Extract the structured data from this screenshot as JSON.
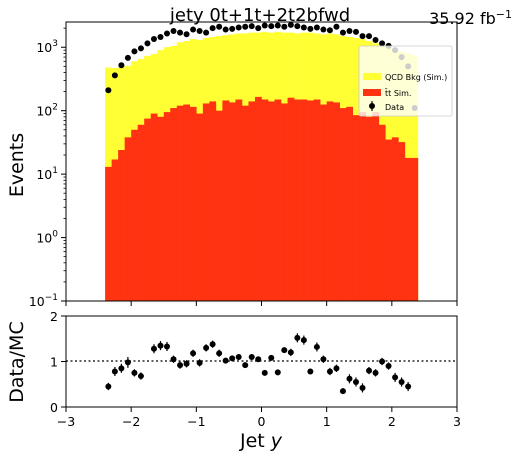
{
  "chart_data": {
    "type": "bar",
    "title": "jety  0t+1t+2t2bfwd",
    "lumi_label": "35.92 fb",
    "lumi_exponent": "−1",
    "xlabel": "Jet y",
    "xlabel_main": "Jet ",
    "xlabel_var": "y",
    "ylabel_top": "Events",
    "ylabel_bottom": "Data/MC",
    "xlim": [
      -3,
      3
    ],
    "ylim_top": [
      0.1,
      2500
    ],
    "yscale_top": "log",
    "ylim_bottom": [
      0,
      2
    ],
    "x_ticks": [
      "−3",
      "−2",
      "−1",
      "0",
      "1",
      "2",
      "3"
    ],
    "y_ticks_top": [
      {
        "base": "10",
        "exp": "−1"
      },
      {
        "base": "10",
        "exp": "0"
      },
      {
        "base": "10",
        "exp": "1"
      },
      {
        "base": "10",
        "exp": "2"
      },
      {
        "base": "10",
        "exp": "3"
      }
    ],
    "y_ticks_bottom": [
      "0",
      "1",
      "2"
    ],
    "reference_line": 1,
    "legend_placement": "top-right",
    "colors": {
      "qcd": "#ffff33",
      "ttbar": "#ff3311",
      "data": "#000000"
    },
    "bin_edges_start": -2.4,
    "bin_width": 0.1,
    "series": [
      {
        "name": "QCD Bkg (Sim.)",
        "stacked_total": [
          480,
          470,
          480,
          510,
          600,
          650,
          730,
          780,
          900,
          1000,
          1050,
          1200,
          1250,
          1350,
          1300,
          1400,
          1450,
          1500,
          1550,
          1600,
          1650,
          1650,
          1700,
          1700,
          1750,
          1700,
          1750,
          1700,
          1700,
          1650,
          1700,
          1700,
          1650,
          1600,
          1650,
          1600,
          1500,
          1450,
          1400,
          1350,
          1250,
          1150,
          1050,
          1000,
          900,
          850,
          800,
          750
        ]
      },
      {
        "name": "t̄t Sim.",
        "values": [
          13,
          17,
          24,
          38,
          50,
          60,
          75,
          90,
          80,
          95,
          110,
          120,
          125,
          115,
          90,
          130,
          140,
          100,
          145,
          135,
          150,
          120,
          140,
          165,
          150,
          140,
          150,
          130,
          160,
          150,
          150,
          145,
          150,
          125,
          140,
          135,
          110,
          115,
          85,
          95,
          80,
          95,
          60,
          35,
          38,
          32,
          18,
          18
        ]
      },
      {
        "name": "Data",
        "x": [
          -2.35,
          -2.25,
          -2.15,
          -2.05,
          -1.95,
          -1.85,
          -1.75,
          -1.65,
          -1.55,
          -1.45,
          -1.35,
          -1.25,
          -1.15,
          -1.05,
          -0.95,
          -0.85,
          -0.75,
          -0.65,
          -0.55,
          -0.45,
          -0.35,
          -0.25,
          -0.15,
          -0.05,
          0.05,
          0.15,
          0.25,
          0.35,
          0.45,
          0.55,
          0.65,
          0.75,
          0.85,
          0.95,
          1.05,
          1.15,
          1.25,
          1.35,
          1.45,
          1.55,
          1.65,
          1.75,
          1.85,
          1.95,
          2.05,
          2.15,
          2.25,
          2.35
        ],
        "values": [
          210,
          360,
          520,
          680,
          860,
          960,
          1150,
          1350,
          1450,
          1650,
          1800,
          1700,
          1600,
          1900,
          1800,
          1700,
          2000,
          2100,
          1900,
          1950,
          2050,
          2100,
          2150,
          2000,
          2200,
          2150,
          2200,
          2100,
          2250,
          2150,
          2050,
          1950,
          2050,
          1900,
          1850,
          2100,
          1700,
          1800,
          1750,
          1500,
          1500,
          1300,
          1150,
          1050,
          900,
          700,
          500,
          110
        ],
        "ratio_x": [
          -2.35,
          -2.25,
          -2.15,
          -2.05,
          -1.95,
          -1.85,
          -1.65,
          -1.55,
          -1.45,
          -1.35,
          -1.25,
          -1.15,
          -1.05,
          -0.95,
          -0.85,
          -0.75,
          -0.65,
          -0.55,
          -0.45,
          -0.35,
          -0.25,
          -0.15,
          -0.05,
          0.05,
          0.15,
          0.25,
          0.35,
          0.45,
          0.55,
          0.65,
          0.75,
          0.85,
          0.95,
          1.05,
          1.15,
          1.25,
          1.35,
          1.45,
          1.55,
          1.65,
          1.75,
          1.85,
          1.95,
          2.05,
          2.15,
          2.25
        ],
        "ratio": [
          0.45,
          0.78,
          0.85,
          0.98,
          0.75,
          0.68,
          1.28,
          1.35,
          1.33,
          1.05,
          0.92,
          0.95,
          1.18,
          0.97,
          1.3,
          1.38,
          1.18,
          1.02,
          1.07,
          1.1,
          0.92,
          1.1,
          1.05,
          0.75,
          1.08,
          0.76,
          1.25,
          1.2,
          1.52,
          1.47,
          0.78,
          1.32,
          1.05,
          0.78,
          0.85,
          0.35,
          0.62,
          0.55,
          0.42,
          0.8,
          0.75,
          1.0,
          0.9,
          0.65,
          0.55,
          0.45
        ],
        "ratio_err": [
          0.08,
          0.1,
          0.1,
          0.12,
          0.08,
          0.08,
          0.1,
          0.1,
          0.1,
          0.08,
          0.08,
          0.08,
          0.08,
          0.08,
          0.08,
          0.08,
          0.08,
          0.06,
          0.06,
          0.06,
          0.06,
          0.06,
          0.06,
          0.06,
          0.06,
          0.06,
          0.06,
          0.08,
          0.1,
          0.1,
          0.06,
          0.1,
          0.08,
          0.08,
          0.08,
          0.06,
          0.1,
          0.1,
          0.1,
          0.08,
          0.08,
          0.08,
          0.08,
          0.1,
          0.1,
          0.1
        ]
      }
    ]
  }
}
